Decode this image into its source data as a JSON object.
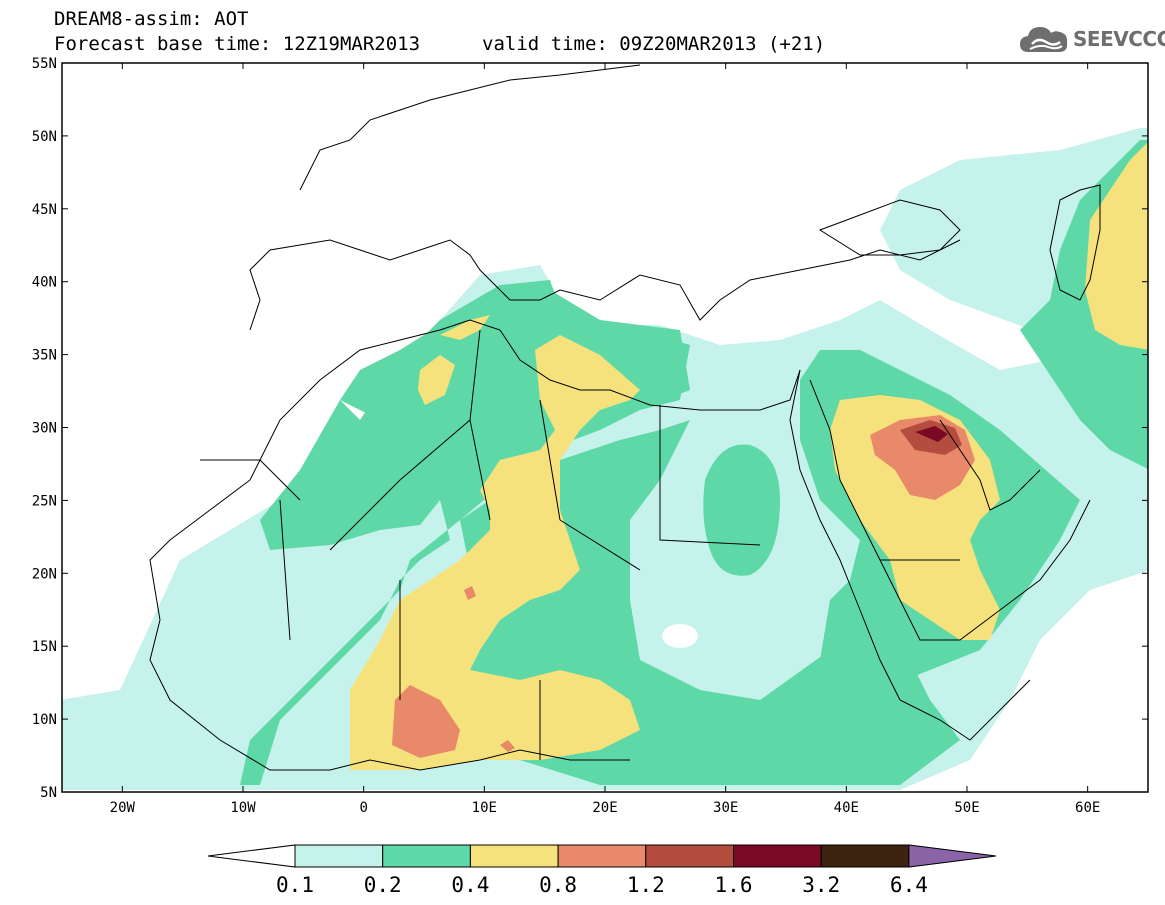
{
  "header": {
    "title": "DREAM8-assim: AOT",
    "base_time": "Forecast base time: 12Z19MAR2013",
    "valid_time": "valid time: 09Z20MAR2013 (+21)"
  },
  "logo": {
    "text": "SEEVCCC",
    "icon": "cloud-icon",
    "color": "#6e6e6e"
  },
  "map": {
    "lat_ticks": [
      "55N",
      "50N",
      "45N",
      "40N",
      "35N",
      "30N",
      "25N",
      "20N",
      "15N",
      "10N",
      "5N"
    ],
    "lon_ticks": [
      "20W",
      "10W",
      "0",
      "10E",
      "20E",
      "30E",
      "40E",
      "50E",
      "60E"
    ],
    "lat_range": [
      5,
      55
    ],
    "lon_range": [
      -25,
      65
    ]
  },
  "legend": {
    "labels": [
      "0.1",
      "0.2",
      "0.4",
      "0.8",
      "1.2",
      "1.6",
      "3.2",
      "6.4"
    ],
    "colors": [
      "#c6f2ec",
      "#5ed8a6",
      "#f6e27c",
      "#e8896a",
      "#b44c3f",
      "#7a0a24",
      "#3d2410",
      "#8b64a8"
    ]
  }
}
